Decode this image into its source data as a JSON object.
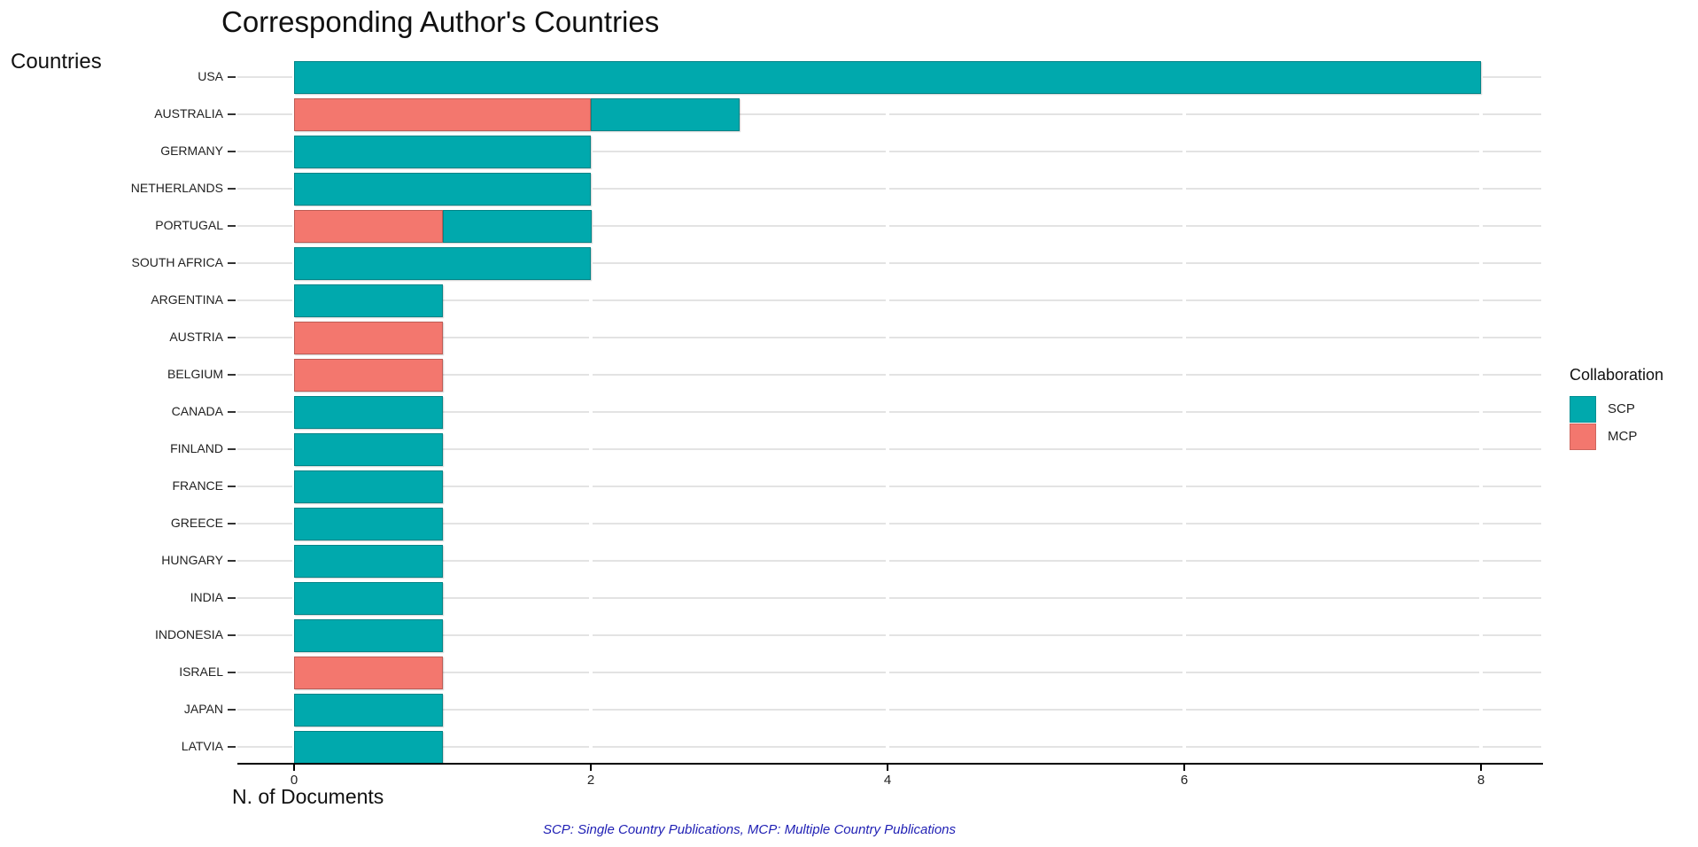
{
  "title": "Corresponding Author's Countries",
  "y_axis_label": "Countries",
  "x_axis_label": "N. of Documents",
  "footnote": "SCP: Single Country Publications, MCP: Multiple Country Publications",
  "legend": {
    "title": "Collaboration",
    "items": [
      {
        "label": "SCP",
        "color": "#00A9AD"
      },
      {
        "label": "MCP",
        "color": "#F3776E"
      }
    ]
  },
  "colors": {
    "scp": "#00A9AD",
    "mcp": "#F3776E",
    "gridline": "#E3E3E3",
    "axis": "#000000",
    "footnote_text": "#1F1FB4",
    "text": "#222222"
  },
  "chart_data": {
    "type": "bar",
    "orientation": "horizontal",
    "stacked": true,
    "stack_order": [
      "MCP",
      "SCP"
    ],
    "title": "Corresponding Author's Countries",
    "xlabel": "N. of Documents",
    "ylabel": "Countries",
    "xlim": [
      0,
      8
    ],
    "x_ticks": [
      0,
      2,
      4,
      6,
      8
    ],
    "grid": "horizontal-major",
    "legend_position": "right",
    "categories": [
      "USA",
      "AUSTRALIA",
      "GERMANY",
      "NETHERLANDS",
      "PORTUGAL",
      "SOUTH AFRICA",
      "ARGENTINA",
      "AUSTRIA",
      "BELGIUM",
      "CANADA",
      "FINLAND",
      "FRANCE",
      "GREECE",
      "HUNGARY",
      "INDIA",
      "INDONESIA",
      "ISRAEL",
      "JAPAN",
      "LATVIA"
    ],
    "series": [
      {
        "name": "MCP",
        "values": [
          0,
          2,
          0,
          0,
          1,
          0,
          0,
          1,
          1,
          0,
          0,
          0,
          0,
          0,
          0,
          0,
          1,
          0,
          0
        ]
      },
      {
        "name": "SCP",
        "values": [
          8,
          1,
          2,
          2,
          1,
          2,
          1,
          0,
          0,
          1,
          1,
          1,
          1,
          1,
          1,
          1,
          0,
          1,
          1
        ]
      }
    ],
    "totals": [
      8,
      3,
      2,
      2,
      2,
      2,
      1,
      1,
      1,
      1,
      1,
      1,
      1,
      1,
      1,
      1,
      1,
      1,
      1
    ]
  }
}
